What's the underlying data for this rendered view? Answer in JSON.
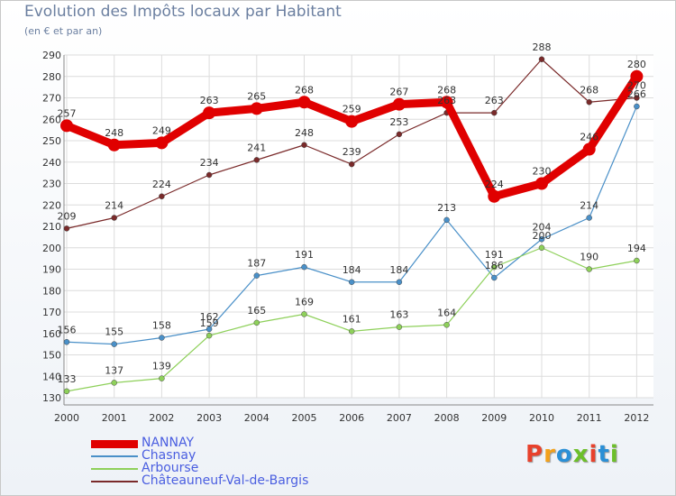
{
  "header": {
    "title": "Evolution des Impôts locaux par Habitant",
    "subtitle": "(en € et par an)"
  },
  "logo": {
    "text": "Proxiti",
    "colors": [
      "#e8412c",
      "#f3a11b",
      "#2a8fd6",
      "#6cbf2a",
      "#e8412c",
      "#2a8fd6",
      "#6cbf2a"
    ]
  },
  "chart_data": {
    "type": "line",
    "categories": [
      "2000",
      "2001",
      "2002",
      "2003",
      "2004",
      "2005",
      "2006",
      "2007",
      "2008",
      "2009",
      "2010",
      "2011",
      "2012"
    ],
    "ylim": [
      130,
      290
    ],
    "yticks": [
      130,
      140,
      150,
      160,
      170,
      180,
      190,
      200,
      210,
      220,
      230,
      240,
      250,
      260,
      270,
      280,
      290
    ],
    "grid": true,
    "legend_position": "bottom",
    "series": [
      {
        "name": "NANNAY",
        "color": "#e00000",
        "values": [
          257,
          248,
          249,
          263,
          265,
          268,
          259,
          267,
          268,
          224,
          230,
          246,
          280
        ]
      },
      {
        "name": "Chasnay",
        "color": "#4a90c8",
        "values": [
          156,
          155,
          158,
          162,
          187,
          191,
          184,
          184,
          213,
          186,
          204,
          214,
          266
        ]
      },
      {
        "name": "Arbourse",
        "color": "#8ed05a",
        "values": [
          133,
          137,
          139,
          159,
          165,
          169,
          161,
          163,
          164,
          191,
          200,
          190,
          194
        ]
      },
      {
        "name": "Châteauneuf-Val-de-Bargis",
        "color": "#7a2a2a",
        "values": [
          209,
          214,
          224,
          234,
          241,
          248,
          239,
          253,
          263,
          263,
          288,
          268,
          270
        ]
      }
    ]
  }
}
